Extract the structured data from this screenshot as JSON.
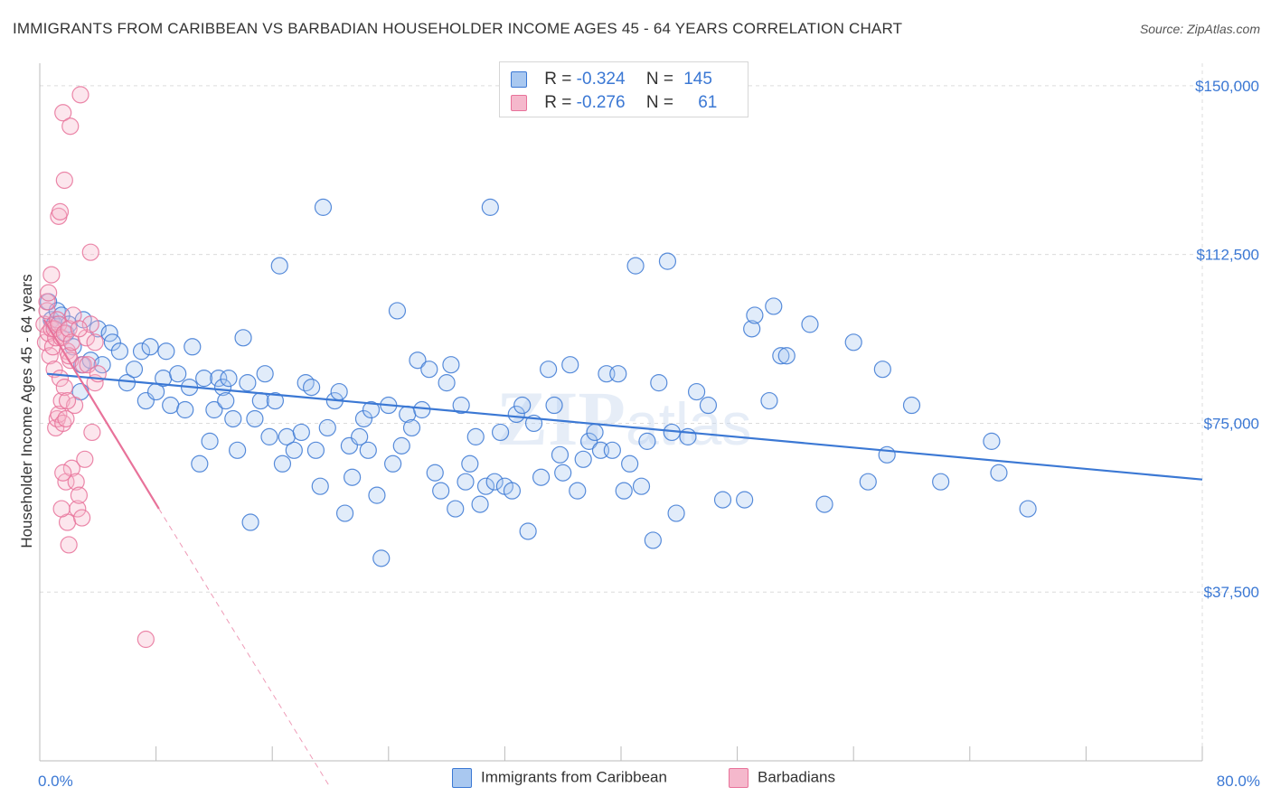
{
  "header": {
    "title": "IMMIGRANTS FROM CARIBBEAN VS BARBADIAN HOUSEHOLDER INCOME AGES 45 - 64 YEARS CORRELATION CHART",
    "source": "Source: ZipAtlas.com"
  },
  "legend": {
    "rows": [
      {
        "r_label": "R =",
        "r_value": "-0.324",
        "n_label": "N =",
        "n_value": "145"
      },
      {
        "r_label": "R =",
        "r_value": "-0.276",
        "n_label": "N =",
        "n_value": "61"
      }
    ]
  },
  "bottom_legend": [
    "Immigrants from Caribbean",
    "Barbadians"
  ],
  "watermark": "ZIPatlas",
  "colors": {
    "blue": "#3b78d4",
    "blue_fill": "#a9c8f0",
    "pink": "#e8729a",
    "pink_fill": "#f5b8cc",
    "grid": "#dcdcdc"
  },
  "chart_data": {
    "type": "scatter",
    "title": "IMMIGRANTS FROM CARIBBEAN VS BARBADIAN HOUSEHOLDER INCOME AGES 45 - 64 YEARS CORRELATION CHART",
    "xlabel": "",
    "ylabel": "Householder Income Ages 45 - 64 years",
    "xlim": [
      0,
      80
    ],
    "ylim": [
      0,
      155000
    ],
    "x_tick_labels": [
      "0.0%",
      "80.0%"
    ],
    "y_ticks": [
      37500,
      75000,
      112500,
      150000
    ],
    "y_tick_labels": [
      "$37,500",
      "$75,000",
      "$112,500",
      "$150,000"
    ],
    "grid": true,
    "legend_position": "top-center",
    "series": [
      {
        "name": "Immigrants from Caribbean",
        "r": -0.324,
        "n": 145,
        "trend": {
          "x0": 0.5,
          "y0": 86000,
          "x1": 80,
          "y1": 62500
        },
        "points": [
          [
            0.6,
            102000
          ],
          [
            0.8,
            98000
          ],
          [
            1.0,
            97000
          ],
          [
            1.2,
            100000
          ],
          [
            1.5,
            99000
          ],
          [
            1.8,
            95000
          ],
          [
            2.0,
            97000
          ],
          [
            2.3,
            92000
          ],
          [
            2.8,
            82000
          ],
          [
            2.9,
            88000
          ],
          [
            3.0,
            98000
          ],
          [
            3.5,
            89000
          ],
          [
            4.0,
            96000
          ],
          [
            4.3,
            88000
          ],
          [
            4.8,
            95000
          ],
          [
            5.0,
            93000
          ],
          [
            5.5,
            91000
          ],
          [
            6.0,
            84000
          ],
          [
            6.5,
            87000
          ],
          [
            7.0,
            91000
          ],
          [
            7.3,
            80000
          ],
          [
            7.6,
            92000
          ],
          [
            8.0,
            82000
          ],
          [
            8.5,
            85000
          ],
          [
            8.7,
            91000
          ],
          [
            9.0,
            79000
          ],
          [
            9.5,
            86000
          ],
          [
            10.0,
            78000
          ],
          [
            10.3,
            83000
          ],
          [
            10.5,
            92000
          ],
          [
            11.0,
            66000
          ],
          [
            11.3,
            85000
          ],
          [
            11.7,
            71000
          ],
          [
            12.0,
            78000
          ],
          [
            12.3,
            85000
          ],
          [
            12.6,
            83000
          ],
          [
            12.8,
            80000
          ],
          [
            13.0,
            85000
          ],
          [
            13.3,
            76000
          ],
          [
            13.6,
            69000
          ],
          [
            14.0,
            94000
          ],
          [
            14.3,
            84000
          ],
          [
            14.5,
            53000
          ],
          [
            14.8,
            76000
          ],
          [
            15.2,
            80000
          ],
          [
            15.5,
            86000
          ],
          [
            15.8,
            72000
          ],
          [
            16.2,
            80000
          ],
          [
            16.5,
            110000
          ],
          [
            16.7,
            66000
          ],
          [
            17.0,
            72000
          ],
          [
            17.5,
            69000
          ],
          [
            18.0,
            73000
          ],
          [
            18.3,
            84000
          ],
          [
            18.7,
            83000
          ],
          [
            19.0,
            69000
          ],
          [
            19.3,
            61000
          ],
          [
            19.5,
            123000
          ],
          [
            19.8,
            74000
          ],
          [
            20.3,
            80000
          ],
          [
            20.6,
            82000
          ],
          [
            21.0,
            55000
          ],
          [
            21.3,
            70000
          ],
          [
            21.5,
            63000
          ],
          [
            22.0,
            72000
          ],
          [
            22.3,
            76000
          ],
          [
            22.6,
            69000
          ],
          [
            22.8,
            78000
          ],
          [
            23.2,
            59000
          ],
          [
            23.5,
            45000
          ],
          [
            24.0,
            79000
          ],
          [
            24.3,
            66000
          ],
          [
            24.6,
            100000
          ],
          [
            24.9,
            70000
          ],
          [
            25.3,
            77000
          ],
          [
            25.6,
            74000
          ],
          [
            26.0,
            89000
          ],
          [
            26.3,
            78000
          ],
          [
            26.8,
            87000
          ],
          [
            27.2,
            64000
          ],
          [
            27.6,
            60000
          ],
          [
            28.0,
            84000
          ],
          [
            28.3,
            88000
          ],
          [
            28.6,
            56000
          ],
          [
            29.0,
            79000
          ],
          [
            29.3,
            62000
          ],
          [
            29.6,
            66000
          ],
          [
            30.0,
            72000
          ],
          [
            30.3,
            57000
          ],
          [
            30.7,
            61000
          ],
          [
            31.0,
            123000
          ],
          [
            31.3,
            62000
          ],
          [
            31.7,
            73000
          ],
          [
            32.0,
            61000
          ],
          [
            32.5,
            60000
          ],
          [
            32.8,
            77000
          ],
          [
            33.2,
            79000
          ],
          [
            33.6,
            51000
          ],
          [
            34.0,
            75000
          ],
          [
            34.5,
            63000
          ],
          [
            35.0,
            87000
          ],
          [
            35.4,
            79000
          ],
          [
            35.8,
            68000
          ],
          [
            36.0,
            64000
          ],
          [
            36.5,
            88000
          ],
          [
            37.0,
            60000
          ],
          [
            37.4,
            67000
          ],
          [
            37.8,
            71000
          ],
          [
            38.2,
            73000
          ],
          [
            38.6,
            69000
          ],
          [
            39.0,
            86000
          ],
          [
            39.4,
            69000
          ],
          [
            39.8,
            86000
          ],
          [
            40.2,
            60000
          ],
          [
            40.6,
            66000
          ],
          [
            41.0,
            110000
          ],
          [
            41.4,
            61000
          ],
          [
            41.8,
            71000
          ],
          [
            42.2,
            49000
          ],
          [
            42.6,
            84000
          ],
          [
            43.2,
            111000
          ],
          [
            43.5,
            73000
          ],
          [
            43.8,
            55000
          ],
          [
            44.6,
            72000
          ],
          [
            45.2,
            82000
          ],
          [
            46.0,
            79000
          ],
          [
            47.0,
            58000
          ],
          [
            48.5,
            58000
          ],
          [
            49.0,
            96000
          ],
          [
            49.2,
            99000
          ],
          [
            50.2,
            80000
          ],
          [
            50.5,
            101000
          ],
          [
            51.0,
            90000
          ],
          [
            51.4,
            90000
          ],
          [
            53.0,
            97000
          ],
          [
            54.0,
            57000
          ],
          [
            56.0,
            93000
          ],
          [
            57.0,
            62000
          ],
          [
            58.0,
            87000
          ],
          [
            58.3,
            68000
          ],
          [
            60.0,
            79000
          ],
          [
            62.0,
            62000
          ],
          [
            65.5,
            71000
          ],
          [
            66.0,
            64000
          ],
          [
            68.0,
            56000
          ]
        ]
      },
      {
        "name": "Barbadians",
        "r": -0.276,
        "n": 61,
        "trend": {
          "x0": 0.3,
          "y0": 98000,
          "x1": 8.2,
          "y1": 56000
        },
        "trend_extension": {
          "x0": 8.2,
          "y0": 56000,
          "x1": 20,
          "y1": -6000
        },
        "points": [
          [
            0.3,
            97000
          ],
          [
            0.4,
            93000
          ],
          [
            0.5,
            100000
          ],
          [
            0.6,
            95000
          ],
          [
            0.7,
            90000
          ],
          [
            0.8,
            96000
          ],
          [
            0.9,
            92000
          ],
          [
            1.0,
            87000
          ],
          [
            1.1,
            94000
          ],
          [
            1.2,
            98000
          ],
          [
            0.5,
            102000
          ],
          [
            0.6,
            104000
          ],
          [
            0.8,
            108000
          ],
          [
            1.0,
            96000
          ],
          [
            1.3,
            97000
          ],
          [
            1.5,
            94000
          ],
          [
            1.7,
            95000
          ],
          [
            1.9,
            91000
          ],
          [
            2.0,
            96000
          ],
          [
            2.1,
            89000
          ],
          [
            1.1,
            74000
          ],
          [
            1.2,
            76000
          ],
          [
            1.3,
            77000
          ],
          [
            1.4,
            85000
          ],
          [
            1.5,
            80000
          ],
          [
            1.6,
            75000
          ],
          [
            1.7,
            83000
          ],
          [
            1.8,
            76000
          ],
          [
            2.0,
            90000
          ],
          [
            2.2,
            93000
          ],
          [
            1.3,
            121000
          ],
          [
            1.4,
            122000
          ],
          [
            1.6,
            144000
          ],
          [
            1.7,
            129000
          ],
          [
            2.1,
            141000
          ],
          [
            2.8,
            148000
          ],
          [
            3.0,
            88000
          ],
          [
            3.2,
            94000
          ],
          [
            3.5,
            97000
          ],
          [
            3.8,
            93000
          ],
          [
            1.8,
            62000
          ],
          [
            1.9,
            53000
          ],
          [
            2.0,
            48000
          ],
          [
            2.2,
            65000
          ],
          [
            2.4,
            79000
          ],
          [
            2.5,
            62000
          ],
          [
            2.6,
            56000
          ],
          [
            2.7,
            59000
          ],
          [
            2.9,
            54000
          ],
          [
            3.1,
            67000
          ],
          [
            3.3,
            88000
          ],
          [
            3.5,
            113000
          ],
          [
            3.6,
            73000
          ],
          [
            3.8,
            84000
          ],
          [
            4.0,
            86000
          ],
          [
            1.5,
            56000
          ],
          [
            1.6,
            64000
          ],
          [
            2.3,
            99000
          ],
          [
            2.7,
            96000
          ],
          [
            1.9,
            80000
          ],
          [
            7.3,
            27000
          ]
        ]
      }
    ]
  }
}
